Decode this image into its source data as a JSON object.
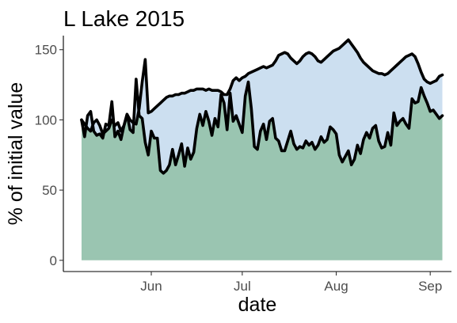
{
  "chart_data": {
    "type": "area",
    "title": "L Lake 2015",
    "xlabel": "date",
    "ylabel": "% of initial value",
    "year": 2015,
    "xlim": [
      "2015-05-03",
      "2015-09-08"
    ],
    "ylim": [
      -8,
      160
    ],
    "x_ticks": [
      {
        "date": "2015-06-01",
        "label": "Jun"
      },
      {
        "date": "2015-07-01",
        "label": "Jul"
      },
      {
        "date": "2015-08-01",
        "label": "Aug"
      },
      {
        "date": "2015-09-01",
        "label": "Sep"
      }
    ],
    "y_ticks": [
      0,
      50,
      100,
      150
    ],
    "grid": false,
    "legend": "none",
    "colors": {
      "upper_fill": "#ccdff0",
      "lower_fill": "#9ac5b1",
      "series_line": "#000000",
      "dark_green": "#1f5a1f"
    },
    "x": [
      "2015-05-09",
      "2015-05-10",
      "2015-05-11",
      "2015-05-12",
      "2015-05-13",
      "2015-05-14",
      "2015-05-15",
      "2015-05-16",
      "2015-05-17",
      "2015-05-18",
      "2015-05-19",
      "2015-05-20",
      "2015-05-21",
      "2015-05-22",
      "2015-05-23",
      "2015-05-24",
      "2015-05-25",
      "2015-05-26",
      "2015-05-27",
      "2015-05-28",
      "2015-05-29",
      "2015-05-30",
      "2015-05-31",
      "2015-06-01",
      "2015-06-02",
      "2015-06-03",
      "2015-06-04",
      "2015-06-05",
      "2015-06-06",
      "2015-06-07",
      "2015-06-08",
      "2015-06-09",
      "2015-06-10",
      "2015-06-11",
      "2015-06-12",
      "2015-06-13",
      "2015-06-14",
      "2015-06-15",
      "2015-06-16",
      "2015-06-17",
      "2015-06-18",
      "2015-06-19",
      "2015-06-20",
      "2015-06-21",
      "2015-06-22",
      "2015-06-23",
      "2015-06-24",
      "2015-06-25",
      "2015-06-26",
      "2015-06-27",
      "2015-06-28",
      "2015-06-29",
      "2015-06-30",
      "2015-07-01",
      "2015-07-02",
      "2015-07-03",
      "2015-07-04",
      "2015-07-05",
      "2015-07-06",
      "2015-07-07",
      "2015-07-08",
      "2015-07-09",
      "2015-07-10",
      "2015-07-11",
      "2015-07-12",
      "2015-07-13",
      "2015-07-14",
      "2015-07-15",
      "2015-07-16",
      "2015-07-17",
      "2015-07-18",
      "2015-07-19",
      "2015-07-20",
      "2015-07-21",
      "2015-07-22",
      "2015-07-23",
      "2015-07-24",
      "2015-07-25",
      "2015-07-26",
      "2015-07-27",
      "2015-07-28",
      "2015-07-29",
      "2015-07-30",
      "2015-07-31",
      "2015-08-01",
      "2015-08-02",
      "2015-08-03",
      "2015-08-04",
      "2015-08-05",
      "2015-08-06",
      "2015-08-07",
      "2015-08-08",
      "2015-08-09",
      "2015-08-10",
      "2015-08-11",
      "2015-08-12",
      "2015-08-13",
      "2015-08-14",
      "2015-08-15",
      "2015-08-16",
      "2015-08-17",
      "2015-08-18",
      "2015-08-19",
      "2015-08-20",
      "2015-08-21",
      "2015-08-22",
      "2015-08-23",
      "2015-08-24",
      "2015-08-25",
      "2015-08-26",
      "2015-08-27",
      "2015-08-28",
      "2015-08-29",
      "2015-08-30",
      "2015-08-31",
      "2015-09-01",
      "2015-09-02",
      "2015-09-03",
      "2015-09-04",
      "2015-09-05"
    ],
    "series": [
      {
        "values": [
          100,
          97,
          94,
          92,
          98,
          100,
          96,
          90,
          92,
          94,
          100,
          96,
          98,
          92,
          96,
          104,
          100,
          98,
          97,
          108,
          127,
          143,
          105,
          106,
          108,
          110,
          112,
          114,
          116,
          117,
          117,
          118,
          118,
          119,
          119,
          120,
          121,
          121,
          122,
          122,
          122,
          121,
          122,
          121,
          121,
          121,
          120,
          118,
          118,
          122,
          128,
          130,
          128,
          130,
          131,
          133,
          134,
          135,
          136,
          137,
          138,
          137,
          138,
          139,
          142,
          146,
          147,
          148,
          147,
          144,
          142,
          140,
          142,
          145,
          147,
          148,
          147,
          145,
          142,
          141,
          143,
          145,
          147,
          149,
          150,
          151,
          153,
          155,
          157,
          154,
          151,
          148,
          144,
          141,
          139,
          137,
          135,
          134,
          133,
          133,
          132,
          133,
          135,
          137,
          139,
          141,
          143,
          145,
          146,
          147,
          145,
          140,
          134,
          129,
          127,
          126,
          127,
          128,
          131,
          132
        ]
      },
      {
        "values": [
          100,
          88,
          103,
          106,
          92,
          89,
          90,
          87,
          97,
          96,
          113,
          88,
          92,
          86,
          96,
          104,
          93,
          91,
          129,
          103,
          101,
          84,
          75,
          92,
          87,
          87,
          64,
          62,
          64,
          68,
          79,
          68,
          75,
          83,
          67,
          80,
          72,
          77,
          94,
          104,
          96,
          106,
          99,
          89,
          101,
          95,
          118,
          112,
          93,
          119,
          99,
          103,
          97,
          91,
          117,
          127,
          108,
          81,
          79,
          92,
          97,
          86,
          99,
          101,
          87,
          85,
          78,
          78,
          85,
          92,
          83,
          79,
          81,
          80,
          85,
          82,
          84,
          79,
          82,
          88,
          84,
          86,
          95,
          93,
          90,
          75,
          70,
          74,
          78,
          68,
          72,
          82,
          76,
          86,
          91,
          87,
          94,
          96,
          85,
          80,
          81,
          91,
          82,
          105,
          96,
          99,
          101,
          97,
          94,
          115,
          112,
          113,
          123,
          117,
          112,
          106,
          107,
          104,
          101,
          103
        ]
      }
    ]
  }
}
